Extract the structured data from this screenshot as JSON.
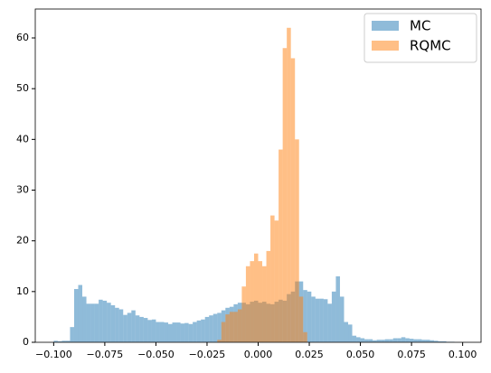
{
  "chart_data": {
    "type": "histogram",
    "xlim": [
      -0.109,
      0.109
    ],
    "ylim": [
      0,
      65.7
    ],
    "xticks": [
      {
        "value": -0.1,
        "label": "−0.100"
      },
      {
        "value": -0.075,
        "label": "−0.075"
      },
      {
        "value": -0.05,
        "label": "−0.050"
      },
      {
        "value": -0.025,
        "label": "−0.025"
      },
      {
        "value": 0,
        "label": "0.000"
      },
      {
        "value": 0.025,
        "label": "0.025"
      },
      {
        "value": 0.05,
        "label": "0.050"
      },
      {
        "value": 0.075,
        "label": "0.075"
      },
      {
        "value": 0.1,
        "label": "0.100"
      }
    ],
    "yticks": [
      0,
      10,
      20,
      30,
      40,
      50,
      60
    ],
    "legend": "upper right",
    "series": [
      {
        "name": "MC",
        "color": "#1f77b4",
        "alpha": 0.5,
        "bins": [
          -0.1,
          -0.098,
          -0.096,
          -0.094,
          -0.092,
          -0.09,
          -0.088,
          -0.086,
          -0.084,
          -0.082,
          -0.08,
          -0.078,
          -0.076,
          -0.074,
          -0.072,
          -0.07,
          -0.068,
          -0.066,
          -0.064,
          -0.062,
          -0.06,
          -0.058,
          -0.056,
          -0.054,
          -0.052,
          -0.05,
          -0.048,
          -0.046,
          -0.044,
          -0.042,
          -0.04,
          -0.038,
          -0.036,
          -0.034,
          -0.032,
          -0.03,
          -0.028,
          -0.026,
          -0.024,
          -0.022,
          -0.02,
          -0.018,
          -0.016,
          -0.014,
          -0.012,
          -0.01,
          -0.008,
          -0.006,
          -0.004,
          -0.002,
          0,
          0.002,
          0.004,
          0.006,
          0.008,
          0.01,
          0.012,
          0.014,
          0.016,
          0.018,
          0.02,
          0.022,
          0.024,
          0.026,
          0.028,
          0.03,
          0.032,
          0.034,
          0.036,
          0.038,
          0.04,
          0.042,
          0.044,
          0.046,
          0.048,
          0.05,
          0.052,
          0.054,
          0.056,
          0.058,
          0.06,
          0.062,
          0.064,
          0.066,
          0.068,
          0.07,
          0.072,
          0.074,
          0.076,
          0.078,
          0.08,
          0.082,
          0.084,
          0.086,
          0.088,
          0.09,
          0.092,
          0.094,
          0.096,
          0.098,
          0.1
        ],
        "values": [
          0.3,
          0.2,
          0.3,
          0.3,
          3,
          10.5,
          11.3,
          9,
          7.6,
          7.6,
          7.6,
          8.4,
          8.2,
          7.8,
          7.3,
          6.8,
          6.5,
          5.4,
          5.8,
          6.3,
          5.3,
          5,
          4.8,
          4.4,
          4.5,
          4,
          4,
          3.9,
          3.6,
          3.9,
          3.9,
          3.7,
          3.8,
          3.6,
          4,
          4.3,
          4.5,
          5,
          5.3,
          5.6,
          5.8,
          6.3,
          6.8,
          7,
          7.5,
          7.8,
          7.8,
          7.5,
          8,
          8.2,
          7.8,
          8,
          7.6,
          7.5,
          8,
          8.4,
          8.2,
          9.5,
          10,
          12,
          12,
          10.3,
          10,
          9,
          8.6,
          8.6,
          8.5,
          7.6,
          10,
          13,
          9,
          4,
          3.5,
          1.3,
          1,
          0.8,
          0.6,
          0.6,
          0.4,
          0.5,
          0.5,
          0.6,
          0.6,
          0.8,
          0.8,
          1,
          0.8,
          0.7,
          0.6,
          0.6,
          0.5,
          0.5,
          0.4,
          0.3,
          0.2,
          0.2,
          0.1,
          0.1,
          0,
          0
        ]
      },
      {
        "name": "RQMC",
        "color": "#ff7f0e",
        "alpha": 0.5,
        "bins": [
          -0.02,
          -0.018,
          -0.016,
          -0.014,
          -0.012,
          -0.01,
          -0.008,
          -0.006,
          -0.004,
          -0.002,
          0,
          0.002,
          0.004,
          0.006,
          0.008,
          0.01,
          0.012,
          0.014,
          0.016,
          0.018,
          0.02,
          0.022,
          0.024
        ],
        "values": [
          0.5,
          4,
          5.5,
          6,
          6,
          6.5,
          11,
          15,
          16,
          17.5,
          16,
          15,
          18,
          25,
          24,
          38,
          58,
          62,
          56,
          40,
          9,
          2
        ]
      }
    ]
  }
}
